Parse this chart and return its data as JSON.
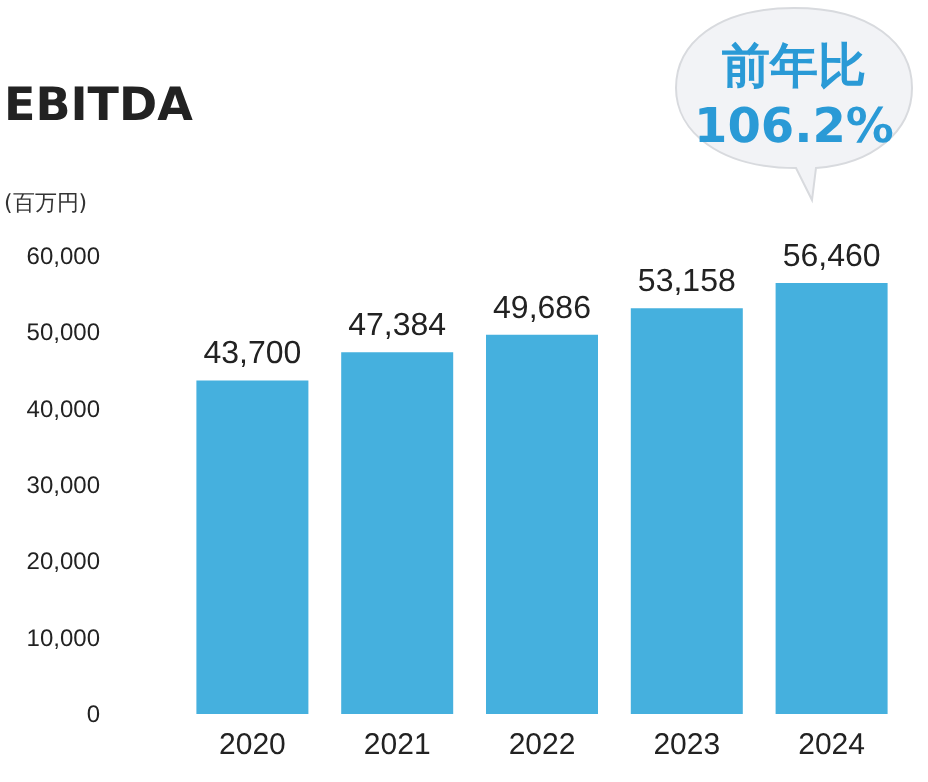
{
  "chart_data": {
    "type": "bar",
    "title": "EBITDA",
    "ylabel": "(百万円)",
    "categories": [
      "2020",
      "2021",
      "2022",
      "2023",
      "2024"
    ],
    "values": [
      43700,
      47384,
      49686,
      53158,
      56460
    ],
    "color": "#45b0de",
    "value_labels": [
      "43,700",
      "47,384",
      "49,686",
      "53,158",
      "56,460"
    ],
    "ylim": [
      0,
      60000
    ],
    "yticks": [
      0,
      {
        "value": 10000,
        "label": "10,000"
      },
      {
        "value": 20000,
        "label": "20,000"
      },
      {
        "value": 30000,
        "label": "30,000"
      },
      {
        "value": 40000,
        "label": "40,000"
      },
      {
        "value": 50000,
        "label": "50,000"
      },
      {
        "value": 60000,
        "label": "60,000"
      }
    ],
    "grid": false,
    "annotations": [
      "前年比 106.2%"
    ]
  }
}
